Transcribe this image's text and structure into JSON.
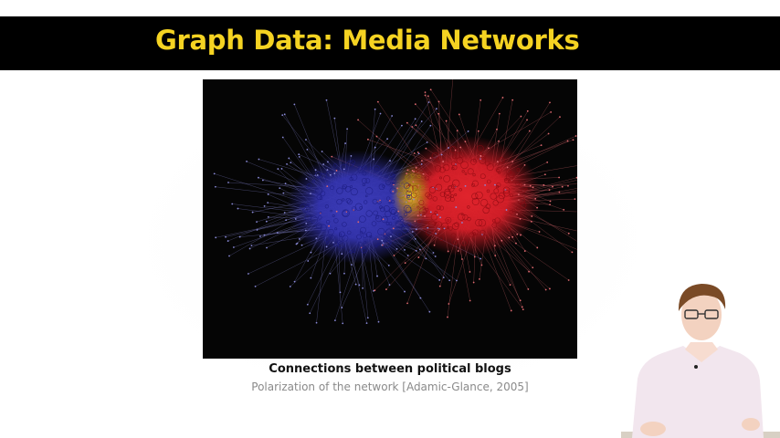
{
  "slide": {
    "title": "Graph Data: Media Networks",
    "caption": "Connections between political blogs",
    "subcaption": "Polarization of the network [Adamic-Glance, 2005]"
  },
  "colors": {
    "title_bar": "#000000",
    "title_text": "#f5d322",
    "cluster_left": "#3a3ac8",
    "cluster_right": "#e0202a",
    "bridge": "#e8c020",
    "figure_background": "#050505"
  }
}
